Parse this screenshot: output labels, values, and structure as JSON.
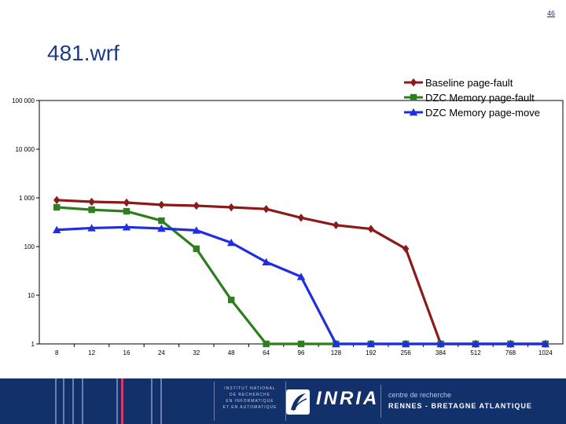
{
  "page": {
    "number": "46",
    "title": "481.wrf"
  },
  "chart_data": {
    "type": "line",
    "y_scale": "log",
    "ylim": [
      1,
      100000
    ],
    "y_ticks": [
      {
        "value": 1,
        "label": "1"
      },
      {
        "value": 10,
        "label": "10"
      },
      {
        "value": 100,
        "label": "100"
      },
      {
        "value": 1000,
        "label": "1 000"
      },
      {
        "value": 10000,
        "label": "10 000"
      },
      {
        "value": 100000,
        "label": "100 000"
      }
    ],
    "categories": [
      "8",
      "12",
      "16",
      "24",
      "32",
      "48",
      "64",
      "96",
      "128",
      "192",
      "256",
      "384",
      "512",
      "768",
      "1024"
    ],
    "grid": false,
    "legend_position": "top-right",
    "series": [
      {
        "name": "Baseline page-fault",
        "color": "#8b1a1a",
        "marker": "diamond",
        "values": [
          900,
          830,
          800,
          720,
          690,
          640,
          590,
          390,
          275,
          230,
          90,
          1,
          1,
          1,
          1
        ]
      },
      {
        "name": "DZC Memory page-fault",
        "color": "#2e7d1e",
        "marker": "square",
        "values": [
          640,
          570,
          530,
          340,
          90,
          8,
          1,
          1,
          1,
          1,
          1,
          1,
          1,
          1,
          1
        ]
      },
      {
        "name": "DZC Memory page-move",
        "color": "#1f2fe0",
        "marker": "triangle",
        "values": [
          220,
          240,
          250,
          235,
          215,
          120,
          48,
          24,
          1,
          1,
          1,
          1,
          1,
          1,
          1
        ]
      }
    ]
  },
  "footer": {
    "institute_lines": [
      "INSTITUT NATIONAL",
      "DE RECHERCHE",
      "EN INFORMATIQUE",
      "ET EN AUTOMATIQUE"
    ],
    "logo_text": "INRIA",
    "centre_line1": "centre de recherche",
    "centre_line2": "RENNES - BRETAGNE ATLANTIQUE"
  }
}
